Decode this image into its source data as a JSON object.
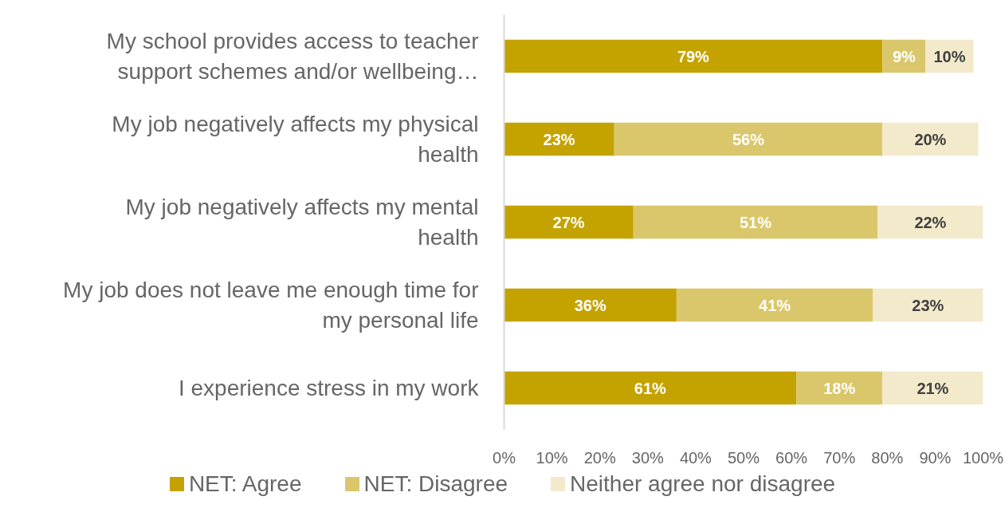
{
  "chart_data": {
    "type": "bar",
    "orientation": "horizontal",
    "stacked": true,
    "grid": false,
    "legend": "bottom",
    "categories": [
      "My school provides access to teacher support schemes and/or wellbeing…",
      "My job negatively affects my physical health",
      "My job negatively affects my mental health",
      "My job does not leave me enough time for my personal life",
      "I experience stress in my work"
    ],
    "series": [
      {
        "name": "NET: Agree",
        "color": "#c4a300",
        "values": [
          79,
          23,
          27,
          36,
          61
        ],
        "value_labels": [
          "79%",
          "23%",
          "27%",
          "36%",
          "61%"
        ]
      },
      {
        "name": "NET: Disagree",
        "color": "#dbc76b",
        "values": [
          9,
          56,
          51,
          41,
          18
        ],
        "value_labels": [
          "9%",
          "56%",
          "51%",
          "41%",
          "18%"
        ]
      },
      {
        "name": "Neither agree nor disagree",
        "color": "#f2eacb",
        "values": [
          10,
          20,
          22,
          23,
          21
        ],
        "value_labels": [
          "10%",
          "20%",
          "22%",
          "23%",
          "21%"
        ]
      }
    ],
    "xlim": [
      0,
      100
    ],
    "xticks": [
      {
        "value": 0,
        "label": "0%"
      },
      {
        "value": 10,
        "label": "10%"
      },
      {
        "value": 20,
        "label": "20%"
      },
      {
        "value": 30,
        "label": "30%"
      },
      {
        "value": 40,
        "label": "40%"
      },
      {
        "value": 50,
        "label": "50%"
      },
      {
        "value": 60,
        "label": "60%"
      },
      {
        "value": 70,
        "label": "70%"
      },
      {
        "value": 80,
        "label": "80%"
      },
      {
        "value": 90,
        "label": "90%"
      },
      {
        "value": 100,
        "label": "100%"
      }
    ]
  }
}
